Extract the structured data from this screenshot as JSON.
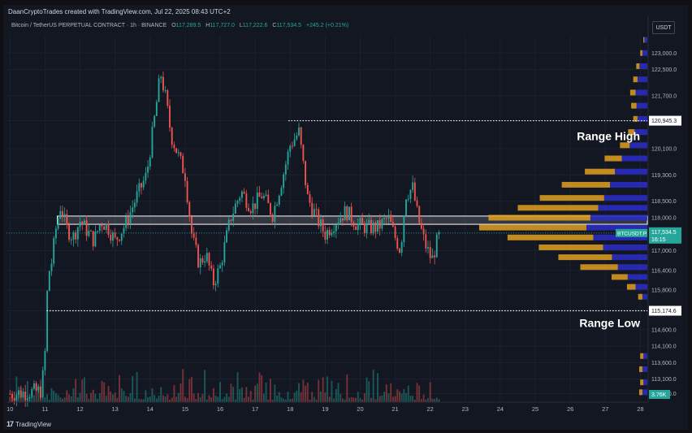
{
  "header": {
    "credit": "DaanCryptoTrades created with TradingView.com, Jul 22, 2025 08:43 UTC+2",
    "symbol": "Bitcoin / TetherUS PERPETUAL CONTRACT · 1h · BINANCE",
    "ohlc": [
      {
        "key": "O",
        "value": "117,289.5"
      },
      {
        "key": "H",
        "value": "117,727.0"
      },
      {
        "key": "L",
        "value": "117,222.6"
      },
      {
        "key": "C",
        "value": "117,534.5"
      }
    ],
    "change": "+245.2 (+0.21%)",
    "currency": "USDT"
  },
  "footer": {
    "brand_logo": "17",
    "brand": "TradingView"
  },
  "colors": {
    "up": "#26a69a",
    "down": "#ef5350",
    "background": "#131722",
    "grid": "#1c2030",
    "axis_text": "#b2b5be",
    "vp_blue": "#2a2cc0",
    "vp_orange": "#e0a020",
    "zone_fill": "#5d6068",
    "price_tag": "#26a69a"
  },
  "chart_data": {
    "type": "candlestick",
    "timeframe": "1h",
    "y_axis": {
      "ticks": [
        "123,000.0",
        "122,500.0",
        "121,700.0",
        "120,945.3",
        "120,100.0",
        "119,300.0",
        "118,500.0",
        "118,000.0",
        "117,534.5",
        "117,000.0",
        "116,400.0",
        "115,800.0",
        "115,174.6",
        "114,600.0",
        "114,100.0",
        "113,600.0",
        "113,100.0",
        "112,660.0"
      ],
      "tick_values": [
        123000,
        122500,
        121700,
        120945.3,
        120100,
        119300,
        118500,
        118000,
        117534.5,
        117000,
        116400,
        115800,
        115174.6,
        114600,
        114100,
        113600,
        113100,
        112660
      ],
      "range": [
        112400,
        123500
      ]
    },
    "x_axis": {
      "ticks": [
        "10",
        "11",
        "12",
        "13",
        "14",
        "15",
        "16",
        "17",
        "18",
        "19",
        "20",
        "21",
        "22",
        "23",
        "24",
        "25",
        "26",
        "27",
        "28"
      ],
      "tick_days": [
        10,
        11,
        12,
        13,
        14,
        15,
        16,
        17,
        18,
        19,
        20,
        21,
        22,
        23,
        24,
        25,
        26,
        27,
        28
      ],
      "range": [
        9.9,
        28.2
      ]
    },
    "current_price": {
      "symbol": "BTCUSDT.P",
      "value": 117534.5,
      "label": "117,534.5",
      "countdown": "16:15"
    },
    "volume_label": "3.76K",
    "annotations": [
      {
        "text": "Range High",
        "price": 120945.3,
        "start_day": 17.95
      },
      {
        "text": "Range Low",
        "price": 115174.6,
        "start_day": 11.05
      }
    ],
    "zone": {
      "low": 117800,
      "high": 118050,
      "start_day": 11.35
    },
    "price_path": [
      {
        "d": 10.0,
        "p": 112650
      },
      {
        "d": 10.5,
        "p": 112700
      },
      {
        "d": 10.9,
        "p": 112750
      },
      {
        "d": 11.0,
        "p": 113900
      },
      {
        "d": 11.05,
        "p": 115500
      },
      {
        "d": 11.1,
        "p": 116300
      },
      {
        "d": 11.2,
        "p": 116700
      },
      {
        "d": 11.3,
        "p": 117600
      },
      {
        "d": 11.45,
        "p": 118400
      },
      {
        "d": 11.6,
        "p": 117700
      },
      {
        "d": 11.8,
        "p": 117400
      },
      {
        "d": 12.0,
        "p": 117900
      },
      {
        "d": 12.2,
        "p": 117600
      },
      {
        "d": 12.4,
        "p": 117300
      },
      {
        "d": 12.6,
        "p": 117900
      },
      {
        "d": 12.8,
        "p": 117700
      },
      {
        "d": 13.0,
        "p": 117300
      },
      {
        "d": 13.3,
        "p": 117800
      },
      {
        "d": 13.6,
        "p": 118600
      },
      {
        "d": 13.9,
        "p": 119300
      },
      {
        "d": 14.1,
        "p": 120800
      },
      {
        "d": 14.3,
        "p": 122400
      },
      {
        "d": 14.45,
        "p": 121600
      },
      {
        "d": 14.6,
        "p": 120500
      },
      {
        "d": 14.8,
        "p": 119900
      },
      {
        "d": 15.0,
        "p": 119300
      },
      {
        "d": 15.2,
        "p": 117400
      },
      {
        "d": 15.4,
        "p": 116600
      },
      {
        "d": 15.6,
        "p": 116900
      },
      {
        "d": 15.8,
        "p": 116000
      },
      {
        "d": 16.0,
        "p": 116500
      },
      {
        "d": 16.3,
        "p": 118000
      },
      {
        "d": 16.6,
        "p": 118800
      },
      {
        "d": 16.9,
        "p": 118300
      },
      {
        "d": 17.2,
        "p": 118700
      },
      {
        "d": 17.5,
        "p": 118100
      },
      {
        "d": 17.8,
        "p": 119300
      },
      {
        "d": 18.0,
        "p": 120200
      },
      {
        "d": 18.25,
        "p": 120600
      },
      {
        "d": 18.5,
        "p": 118600
      },
      {
        "d": 18.8,
        "p": 117900
      },
      {
        "d": 19.0,
        "p": 117500
      },
      {
        "d": 19.3,
        "p": 117900
      },
      {
        "d": 19.6,
        "p": 118200
      },
      {
        "d": 19.9,
        "p": 117800
      },
      {
        "d": 20.2,
        "p": 117700
      },
      {
        "d": 20.5,
        "p": 117700
      },
      {
        "d": 20.8,
        "p": 118000
      },
      {
        "d": 21.0,
        "p": 117400
      },
      {
        "d": 21.15,
        "p": 117000
      },
      {
        "d": 21.3,
        "p": 118700
      },
      {
        "d": 21.5,
        "p": 118900
      },
      {
        "d": 21.65,
        "p": 118000
      },
      {
        "d": 21.85,
        "p": 117200
      },
      {
        "d": 22.05,
        "p": 116700
      },
      {
        "d": 22.2,
        "p": 117300
      },
      {
        "d": 22.3,
        "p": 117534.5
      }
    ],
    "volume_profile": [
      {
        "price": 123400,
        "blue": 0.03,
        "orange": 0.01
      },
      {
        "price": 123000,
        "blue": 0.05,
        "orange": 0.02
      },
      {
        "price": 122600,
        "blue": 0.08,
        "orange": 0.03
      },
      {
        "price": 122200,
        "blue": 0.1,
        "orange": 0.04
      },
      {
        "price": 121800,
        "blue": 0.12,
        "orange": 0.05
      },
      {
        "price": 121400,
        "blue": 0.11,
        "orange": 0.05
      },
      {
        "price": 121000,
        "blue": 0.1,
        "orange": 0.04
      },
      {
        "price": 120600,
        "blue": 0.13,
        "orange": 0.06
      },
      {
        "price": 120200,
        "blue": 0.18,
        "orange": 0.09
      },
      {
        "price": 119800,
        "blue": 0.26,
        "orange": 0.16
      },
      {
        "price": 119400,
        "blue": 0.33,
        "orange": 0.28
      },
      {
        "price": 119000,
        "blue": 0.38,
        "orange": 0.45
      },
      {
        "price": 118600,
        "blue": 0.44,
        "orange": 0.6
      },
      {
        "price": 118300,
        "blue": 0.5,
        "orange": 0.75
      },
      {
        "price": 118000,
        "blue": 0.58,
        "orange": 0.95
      },
      {
        "price": 117700,
        "blue": 0.62,
        "orange": 1.0
      },
      {
        "price": 117400,
        "blue": 0.55,
        "orange": 0.8
      },
      {
        "price": 117100,
        "blue": 0.45,
        "orange": 0.6
      },
      {
        "price": 116800,
        "blue": 0.36,
        "orange": 0.5
      },
      {
        "price": 116500,
        "blue": 0.3,
        "orange": 0.35
      },
      {
        "price": 116200,
        "blue": 0.2,
        "orange": 0.15
      },
      {
        "price": 115900,
        "blue": 0.12,
        "orange": 0.08
      },
      {
        "price": 115600,
        "blue": 0.05,
        "orange": 0.04
      },
      {
        "price": 113800,
        "blue": 0.04,
        "orange": 0.03
      },
      {
        "price": 113400,
        "blue": 0.05,
        "orange": 0.03
      },
      {
        "price": 113000,
        "blue": 0.04,
        "orange": 0.03
      },
      {
        "price": 112700,
        "blue": 0.05,
        "orange": 0.03
      }
    ]
  }
}
